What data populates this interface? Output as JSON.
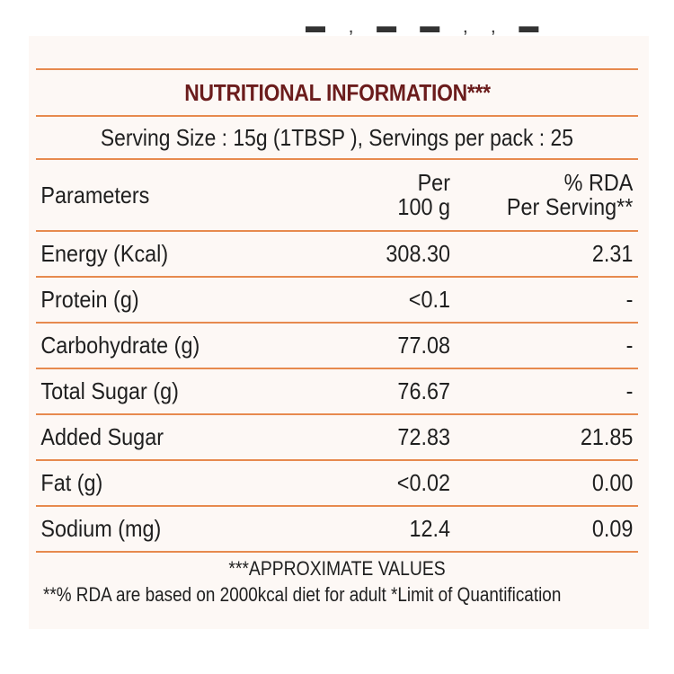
{
  "label": {
    "title": "NUTRITIONAL INFORMATION***",
    "serving_info": "Serving Size : 15g (1TBSP ),  Servings per pack : 25",
    "columns": {
      "parameter": "Parameters",
      "per_100g_line1": "Per",
      "per_100g_line2": "100 g",
      "rda_line1": "% RDA",
      "rda_line2": "Per Serving**"
    },
    "rows": [
      {
        "parameter": "Energy (Kcal)",
        "per_100g": "308.30",
        "rda": "2.31"
      },
      {
        "parameter": "Protein (g)",
        "per_100g": "<0.1",
        "rda": "-"
      },
      {
        "parameter": "Carbohydrate (g)",
        "per_100g": "77.08",
        "rda": "-"
      },
      {
        "parameter": "Total Sugar (g)",
        "per_100g": "76.67",
        "rda": "-"
      },
      {
        "parameter": "Added Sugar",
        "per_100g": "72.83",
        "rda": "21.85"
      },
      {
        "parameter": "Fat (g)",
        "per_100g": "<0.02",
        "rda": "0.00"
      },
      {
        "parameter": "Sodium (mg)",
        "per_100g": "12.4",
        "rda": "0.09"
      }
    ],
    "footnote_1": "***APPROXIMATE VALUES",
    "footnote_2": "**% RDA are based on 2000kcal diet for adult *Limit of Quantification"
  },
  "colors": {
    "rule": "#e78a4e",
    "title": "#6b1c1c",
    "text": "#1f1f1f"
  }
}
